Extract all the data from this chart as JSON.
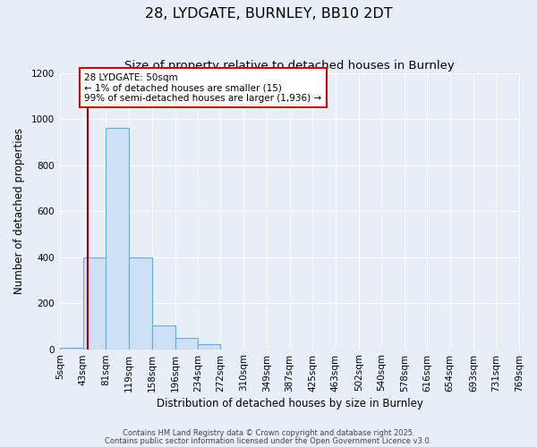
{
  "title": "28, LYDGATE, BURNLEY, BB10 2DT",
  "subtitle": "Size of property relative to detached houses in Burnley",
  "xlabel": "Distribution of detached houses by size in Burnley",
  "ylabel": "Number of detached properties",
  "bin_edges": [
    5,
    43,
    81,
    119,
    158,
    196,
    234,
    272,
    310,
    349,
    387,
    425,
    463,
    502,
    540,
    578,
    616,
    654,
    693,
    731,
    769
  ],
  "bar_heights": [
    5,
    400,
    960,
    400,
    105,
    50,
    20,
    0,
    0,
    0,
    0,
    0,
    0,
    0,
    0,
    0,
    0,
    0,
    0,
    0
  ],
  "bar_color": "#cde0f5",
  "bar_edgecolor": "#6aaad4",
  "property_value": 50,
  "property_line_color": "#990000",
  "annotation_text": "28 LYDGATE: 50sqm\n← 1% of detached houses are smaller (15)\n99% of semi-detached houses are larger (1,936) →",
  "annotation_box_edgecolor": "#cc0000",
  "annotation_box_facecolor": "#ffffff",
  "ylim": [
    0,
    1200
  ],
  "yticks": [
    0,
    200,
    400,
    600,
    800,
    1000,
    1200
  ],
  "background_color": "#e8eef8",
  "grid_color": "#ffffff",
  "footer1": "Contains HM Land Registry data © Crown copyright and database right 2025.",
  "footer2": "Contains public sector information licensed under the Open Government Licence v3.0.",
  "title_fontsize": 11.5,
  "subtitle_fontsize": 9.5,
  "axis_label_fontsize": 8.5,
  "tick_label_fontsize": 7.5,
  "annotation_fontsize": 7.5,
  "footer_fontsize": 6.0
}
